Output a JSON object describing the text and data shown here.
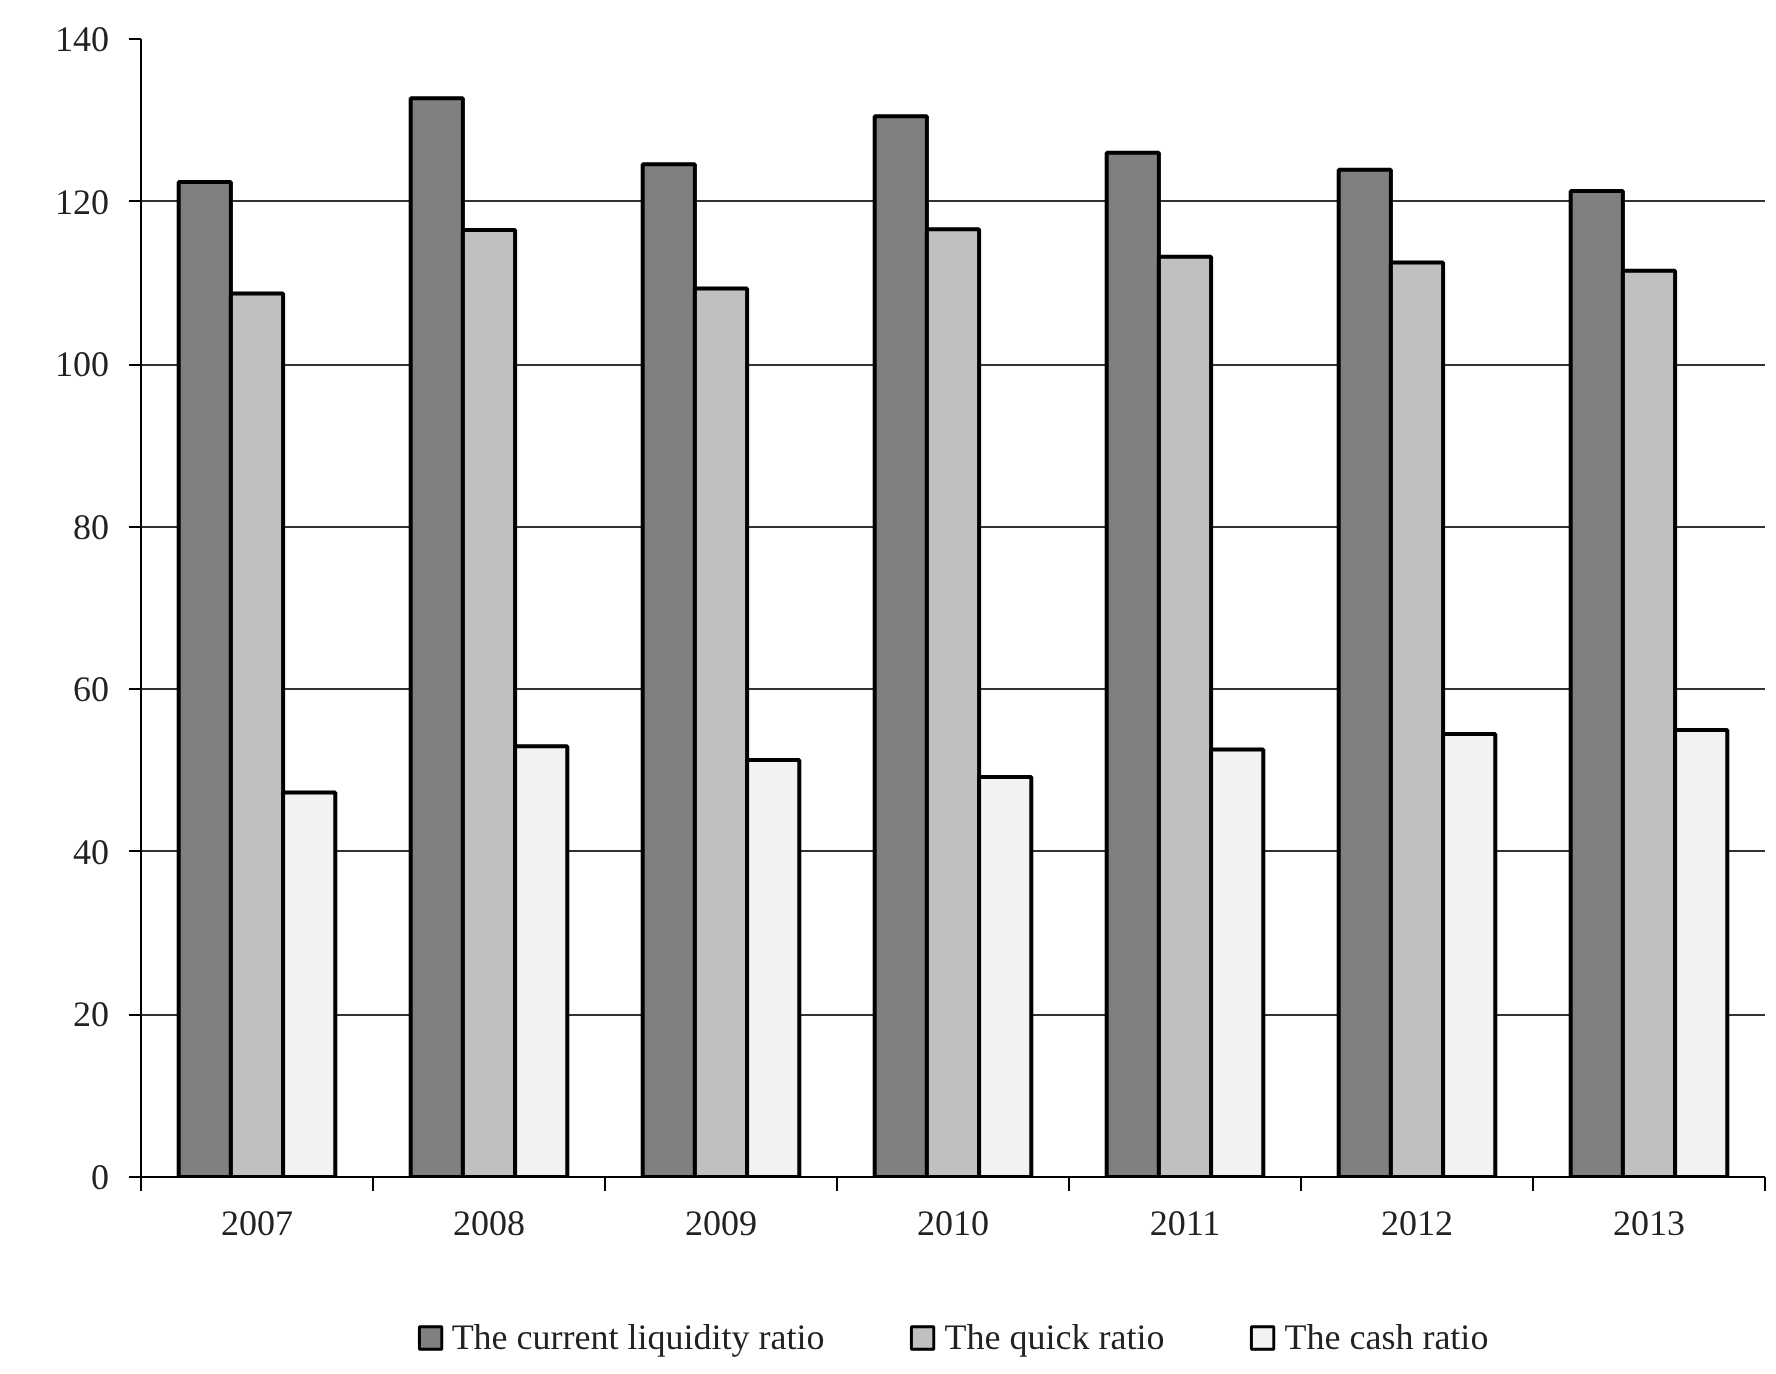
{
  "chart_data": {
    "type": "bar",
    "categories": [
      "2007",
      "2008",
      "2009",
      "2010",
      "2011",
      "2012",
      "2013"
    ],
    "series": [
      {
        "name": "The current liquidity ratio",
        "color": "#808080",
        "values": [
          122.4,
          132.7,
          124.6,
          130.5,
          126,
          123.9,
          121.3
        ]
      },
      {
        "name": "The quick ratio",
        "color": "#c0c0c0",
        "values": [
          108.7,
          116.5,
          109.3,
          116.6,
          113.2,
          112.5,
          111.5
        ]
      },
      {
        "name": "The cash ratio",
        "color": "#f2f2f2",
        "values": [
          47.3,
          53,
          51.3,
          49.2,
          52.6,
          54.5,
          55
        ]
      }
    ],
    "ylim": [
      0,
      140
    ],
    "yticks": [
      0,
      20,
      40,
      60,
      80,
      100,
      120,
      140
    ],
    "grid": "y",
    "legend": "bottom"
  }
}
